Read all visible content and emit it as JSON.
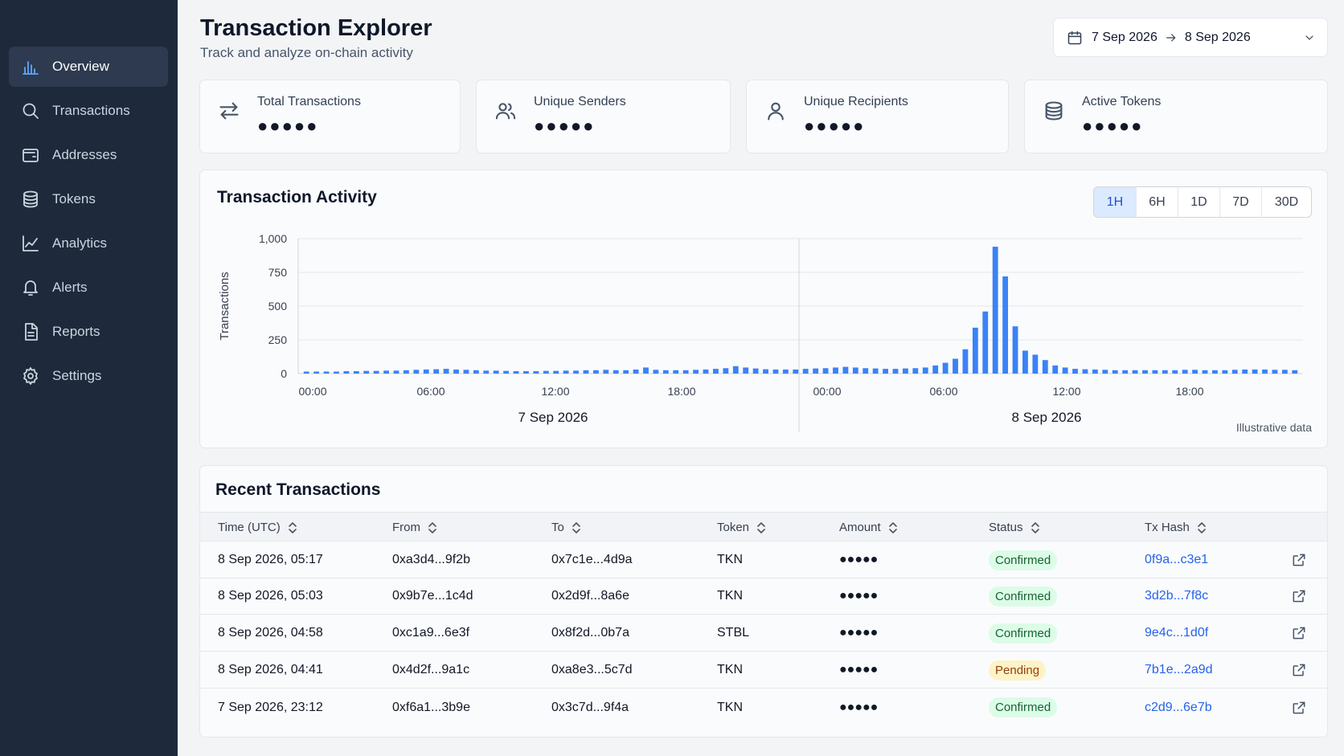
{
  "sidebar": {
    "items": [
      {
        "label": "Overview",
        "icon": "bar-chart-icon",
        "active": true
      },
      {
        "label": "Transactions",
        "icon": "search-icon",
        "active": false
      },
      {
        "label": "Addresses",
        "icon": "wallet-icon",
        "active": false
      },
      {
        "label": "Tokens",
        "icon": "database-icon",
        "active": false
      },
      {
        "label": "Analytics",
        "icon": "line-chart-icon",
        "active": false
      },
      {
        "label": "Alerts",
        "icon": "bell-icon",
        "active": false
      },
      {
        "label": "Reports",
        "icon": "document-icon",
        "active": false
      },
      {
        "label": "Settings",
        "icon": "gear-icon",
        "active": false
      }
    ]
  },
  "header": {
    "title": "Transaction Explorer",
    "subtitle": "Track and analyze on-chain activity",
    "date_from": "7 Sep 2026",
    "date_to": "8 Sep 2026"
  },
  "stats": [
    {
      "label": "Total Transactions",
      "value": "●●●●●",
      "icon": "swap-arrows-icon"
    },
    {
      "label": "Unique Senders",
      "value": "●●●●●",
      "icon": "users-icon"
    },
    {
      "label": "Unique Recipients",
      "value": "●●●●●",
      "icon": "user-icon"
    },
    {
      "label": "Active Tokens",
      "value": "●●●●●",
      "icon": "coins-icon"
    }
  ],
  "activity": {
    "title": "Transaction Activity",
    "ranges": [
      "1H",
      "6H",
      "1D",
      "7D",
      "30D"
    ],
    "active_range": "1H",
    "note": "Illustrative data"
  },
  "chart_data": {
    "type": "bar",
    "ylabel": "Transactions",
    "ylim": [
      0,
      1000
    ],
    "yticks": [
      "0",
      "250",
      "500",
      "750",
      "1,000"
    ],
    "xticks": [
      "00:00",
      "06:00",
      "12:00",
      "18:00",
      "00:00",
      "06:00",
      "12:00",
      "18:00"
    ],
    "day_labels": [
      "7 Sep 2026",
      "8 Sep 2026"
    ],
    "grid": true,
    "values": [
      15,
      15,
      15,
      15,
      18,
      18,
      20,
      20,
      22,
      22,
      25,
      28,
      30,
      32,
      35,
      30,
      28,
      25,
      22,
      22,
      20,
      18,
      18,
      18,
      20,
      20,
      22,
      22,
      25,
      25,
      28,
      25,
      25,
      30,
      45,
      28,
      25,
      25,
      25,
      28,
      30,
      35,
      40,
      55,
      45,
      38,
      32,
      30,
      30,
      30,
      35,
      38,
      40,
      45,
      50,
      45,
      40,
      38,
      35,
      35,
      38,
      40,
      45,
      60,
      80,
      110,
      180,
      340,
      460,
      940,
      720,
      350,
      170,
      140,
      100,
      60,
      45,
      35,
      32,
      30,
      28,
      25,
      25,
      25,
      25,
      25,
      25,
      25,
      28,
      28,
      25,
      25,
      25,
      28,
      30,
      30,
      30,
      28,
      28,
      25
    ]
  },
  "recent": {
    "title": "Recent Transactions",
    "columns": [
      "Time (UTC)",
      "From",
      "To",
      "Token",
      "Amount",
      "Status",
      "Tx Hash"
    ],
    "rows": [
      {
        "time": "8 Sep 2026, 05:17",
        "from": "0xa3d4...9f2b",
        "to": "0x7c1e...4d9a",
        "token": "TKN",
        "amount": "●●●●●",
        "status": "Confirmed",
        "hash": "0f9a...c3e1"
      },
      {
        "time": "8 Sep 2026, 05:03",
        "from": "0x9b7e...1c4d",
        "to": "0x2d9f...8a6e",
        "token": "TKN",
        "amount": "●●●●●",
        "status": "Confirmed",
        "hash": "3d2b...7f8c"
      },
      {
        "time": "8 Sep 2026, 04:58",
        "from": "0xc1a9...6e3f",
        "to": "0x8f2d...0b7a",
        "token": "STBL",
        "amount": "●●●●●",
        "status": "Confirmed",
        "hash": "9e4c...1d0f"
      },
      {
        "time": "8 Sep 2026, 04:41",
        "from": "0x4d2f...9a1c",
        "to": "0xa8e3...5c7d",
        "token": "TKN",
        "amount": "●●●●●",
        "status": "Pending",
        "hash": "7b1e...2a9d"
      },
      {
        "time": "7 Sep 2026, 23:12",
        "from": "0xf6a1...3b9e",
        "to": "0x3c7d...9f4a",
        "token": "TKN",
        "amount": "●●●●●",
        "status": "Confirmed",
        "hash": "c2d9...6e7b"
      }
    ]
  },
  "colors": {
    "sidebar_bg": "#1e293b",
    "accent": "#3b82f6",
    "confirmed_bg": "#dcfce7",
    "pending_bg": "#fef3c7"
  }
}
